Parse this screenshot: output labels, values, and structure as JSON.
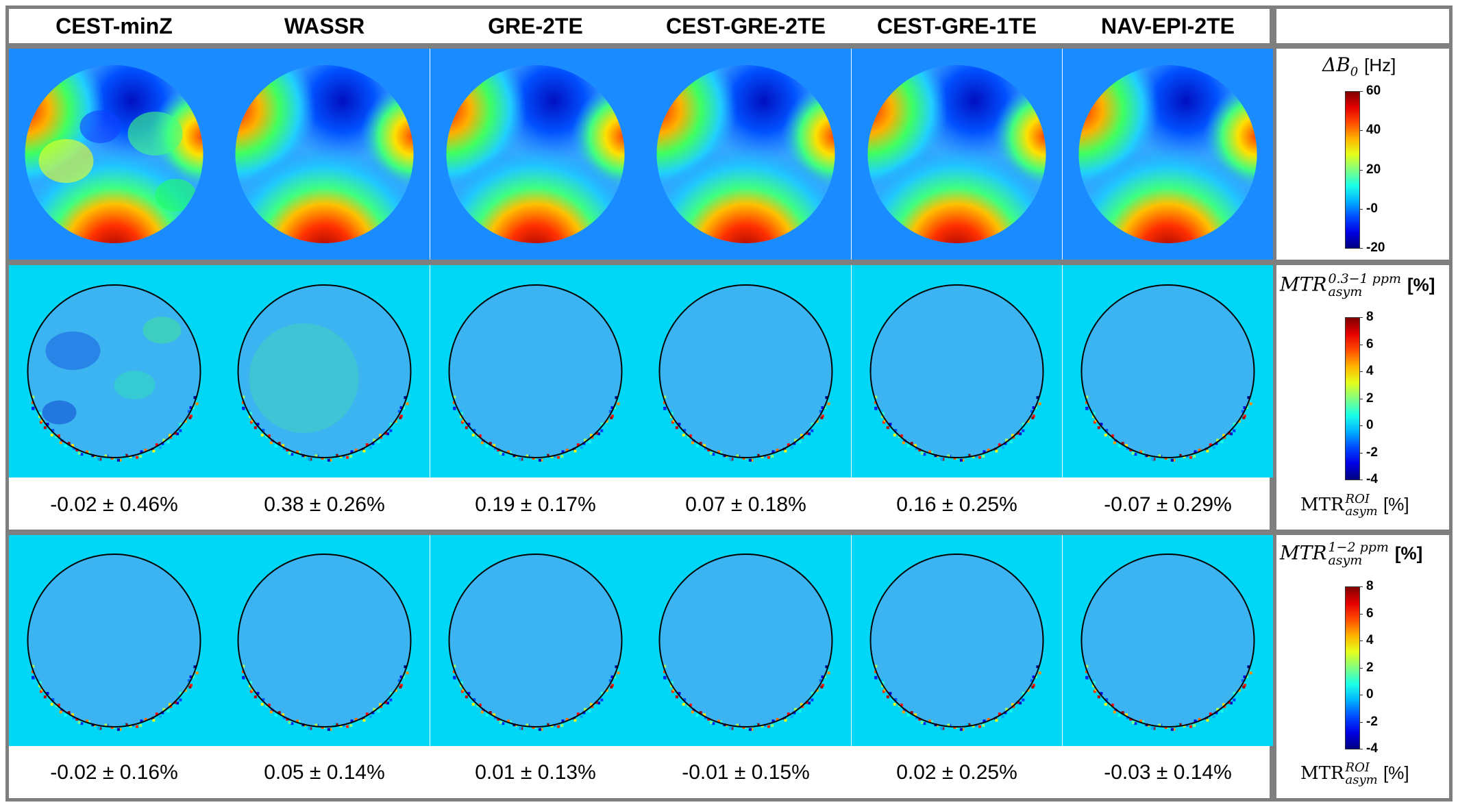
{
  "columns": [
    "CEST-minZ",
    "WASSR",
    "GRE-2TE",
    "CEST-GRE-2TE",
    "CEST-GRE-1TE",
    "NAV-EPI-2TE"
  ],
  "rows": [
    {
      "id": "b0",
      "colorbar": {
        "title_symbol": "ΔB",
        "title_sub": "0",
        "title_unit": "[Hz]",
        "ticks": [
          "60",
          "40",
          "20",
          "-0",
          "-20"
        ],
        "range": [
          -20,
          60
        ]
      },
      "background": "#1a8cff"
    },
    {
      "id": "mtr_03_1",
      "colorbar": {
        "title_main": "MTR",
        "title_sub": "asym",
        "title_sup": "0.3−1 ppm",
        "title_unit": "[%]",
        "ticks": [
          "8",
          "6",
          "4",
          "2",
          "0",
          "-2",
          "-4"
        ],
        "range": [
          -4,
          8
        ]
      },
      "roi_label": {
        "main": "MTR",
        "sub": "asym",
        "sup": "ROI",
        "unit": "[%]"
      },
      "stats": [
        "-0.02 ± 0.46%",
        "0.38 ± 0.26%",
        "0.19 ± 0.17%",
        "0.07 ± 0.18%",
        "0.16 ± 0.25%",
        "-0.07 ± 0.29%"
      ],
      "background": "#00d6f5"
    },
    {
      "id": "mtr_1_2",
      "colorbar": {
        "title_main": "MTR",
        "title_sub": "asym",
        "title_sup": "1−2 ppm",
        "title_unit": "[%]",
        "ticks": [
          "8",
          "6",
          "4",
          "2",
          "0",
          "-2",
          "-4"
        ],
        "range": [
          -4,
          8
        ]
      },
      "roi_label": {
        "main": "MTR",
        "sub": "asym",
        "sup": "ROI",
        "unit": "[%]"
      },
      "stats": [
        "-0.02 ± 0.16%",
        "0.05 ± 0.14%",
        "0.01 ± 0.13%",
        "-0.01 ± 0.15%",
        "0.02 ± 0.25%",
        "-0.03 ± 0.14%"
      ],
      "background": "#00d6f5"
    }
  ],
  "colors": {
    "border": "#7f7f7f",
    "circle_outline": "#000000"
  }
}
